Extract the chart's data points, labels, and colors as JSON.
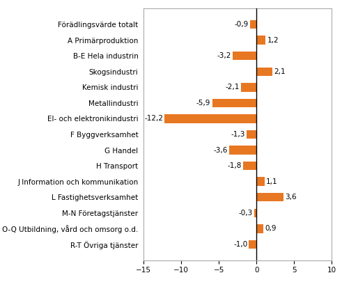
{
  "categories": [
    "Förädlingsvärde totalt",
    "A Primärproduktion",
    "B-E Hela industrin",
    "Skogsindustri",
    "Kemisk industri",
    "Metallindustri",
    "El- och elektronikindustri",
    "F Byggverksamhet",
    "G Handel",
    "H Transport",
    "J Information och kommunikation",
    "L Fastighetsverksamhet",
    "M-N Företagstjänster",
    "O-Q Utbildning, vård och omsorg o.d.",
    "R-T Övriga tjänster"
  ],
  "values": [
    -0.9,
    1.2,
    -3.2,
    2.1,
    -2.1,
    -5.9,
    -12.2,
    -1.3,
    -3.6,
    -1.8,
    1.1,
    3.6,
    -0.3,
    0.9,
    -1.0
  ],
  "bar_color": "#E87722",
  "xlim": [
    -15,
    10
  ],
  "xticks": [
    -15,
    -10,
    -5,
    0,
    5,
    10
  ],
  "background_color": "#ffffff",
  "label_fontsize": 7.5,
  "value_fontsize": 7.5
}
